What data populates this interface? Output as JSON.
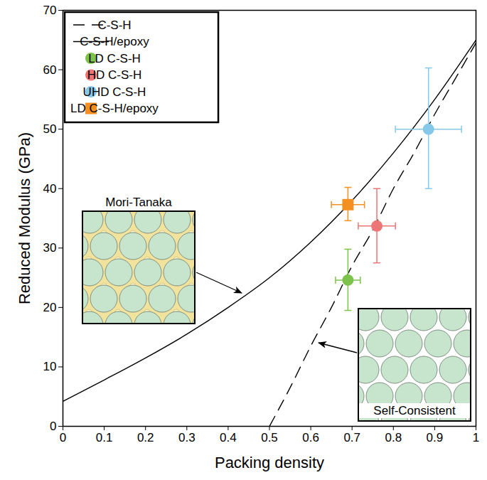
{
  "chart_data": {
    "type": "scatter",
    "x_label": "Packing density",
    "y_label": "Reduced Modulus (GPa)",
    "xlim": [
      0,
      1
    ],
    "ylim": [
      0,
      70
    ],
    "xticks": [
      0,
      0.1,
      0.2,
      0.3,
      0.4,
      0.5,
      0.6,
      0.7,
      0.8,
      0.9,
      1
    ],
    "yticks": [
      0,
      10,
      20,
      30,
      40,
      50,
      60,
      70
    ],
    "grid": false,
    "legend": "top-left",
    "series": [
      {
        "name": "C-S-H",
        "type": "line",
        "line_style": "dashed",
        "color": "#000000",
        "x": [
          0.5,
          0.55,
          0.6,
          0.65,
          0.7,
          0.75,
          0.8,
          0.85,
          0.9,
          0.95,
          1.0
        ],
        "values": [
          0,
          6.5,
          13.5,
          20,
          27,
          33,
          40,
          46,
          52.5,
          58.5,
          64.5
        ]
      },
      {
        "name": "C-S-H/epoxy",
        "type": "line",
        "line_style": "solid",
        "color": "#000000",
        "x": [
          0,
          0.1,
          0.2,
          0.3,
          0.4,
          0.5,
          0.6,
          0.7,
          0.8,
          0.9,
          1.0
        ],
        "values": [
          4.2,
          7.8,
          11.5,
          15.5,
          20,
          25,
          31,
          38,
          46,
          55,
          65
        ]
      },
      {
        "name": "LD C-S-H",
        "type": "scatter",
        "marker": "circle",
        "color": "#7dc24b",
        "x": [
          0.69
        ],
        "values": [
          24.6
        ],
        "x_range": [
          [
            0.66,
            0.72
          ]
        ],
        "y_range": [
          [
            19.5,
            29.8
          ]
        ]
      },
      {
        "name": "HD C-S-H",
        "type": "scatter",
        "marker": "circle",
        "color": "#ee7575",
        "x": [
          0.76
        ],
        "values": [
          33.7
        ],
        "x_range": [
          [
            0.715,
            0.805
          ]
        ],
        "y_range": [
          [
            27.5,
            40
          ]
        ]
      },
      {
        "name": "UHD C-S-H",
        "type": "scatter",
        "marker": "circle",
        "color": "#86c8ea",
        "x": [
          0.885
        ],
        "values": [
          50
        ],
        "x_range": [
          [
            0.805,
            0.965
          ]
        ],
        "y_range": [
          [
            40,
            60.3
          ]
        ]
      },
      {
        "name": "LD C-S-H/epoxy",
        "type": "scatter",
        "marker": "square",
        "color": "#f39021",
        "x": [
          0.69
        ],
        "values": [
          37.3
        ],
        "x_range": [
          [
            0.65,
            0.73
          ]
        ],
        "y_range": [
          [
            34.6,
            40.2
          ]
        ]
      }
    ],
    "annotations": [
      {
        "text": "Mori-Tanaka"
      },
      {
        "text": "Self-Consistent"
      }
    ]
  }
}
